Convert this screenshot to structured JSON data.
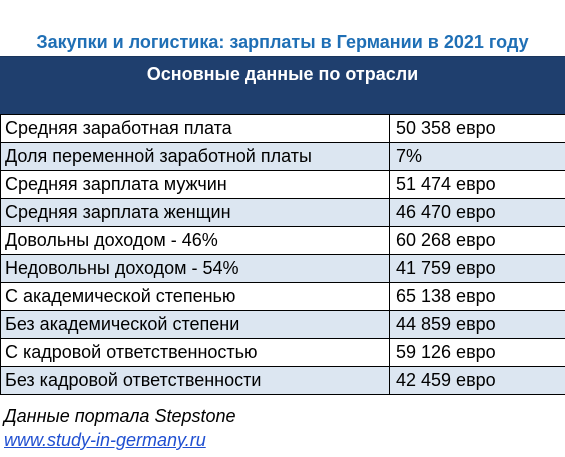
{
  "title": "Закупки и логистика: зарплаты в Германии в 2021 году",
  "table": {
    "header": "Основные данные по отрасли",
    "rows": [
      {
        "label": "Средняя заработная плата",
        "value": "50 358 евро"
      },
      {
        "label": "Доля переменной заработной платы",
        "value": "7%"
      },
      {
        "label": "Средняя зарплата мужчин",
        "value": "51 474 евро"
      },
      {
        "label": "Средняя зарплата женщин",
        "value": "46 470 евро"
      },
      {
        "label": "Довольны доходом - 46%",
        "value": "60 268 евро"
      },
      {
        "label": "Недовольны доходом - 54%",
        "value": "41 759 евро"
      },
      {
        "label": "С академической степенью",
        "value": "65 138 евро"
      },
      {
        "label": "Без академической степени",
        "value": "44 859 евро"
      },
      {
        "label": "С кадровой ответственностью",
        "value": "59 126 евро"
      },
      {
        "label": "Без кадровой ответственности",
        "value": "42 459 евро"
      }
    ]
  },
  "footer": {
    "source": "Данные портала Stepstone",
    "link": "www.study-in-germany.ru"
  },
  "colors": {
    "title": "#1f6fb5",
    "header_bg": "#1f3f6e",
    "row_alt": "#dce6f1",
    "link": "#1f4fd1"
  }
}
